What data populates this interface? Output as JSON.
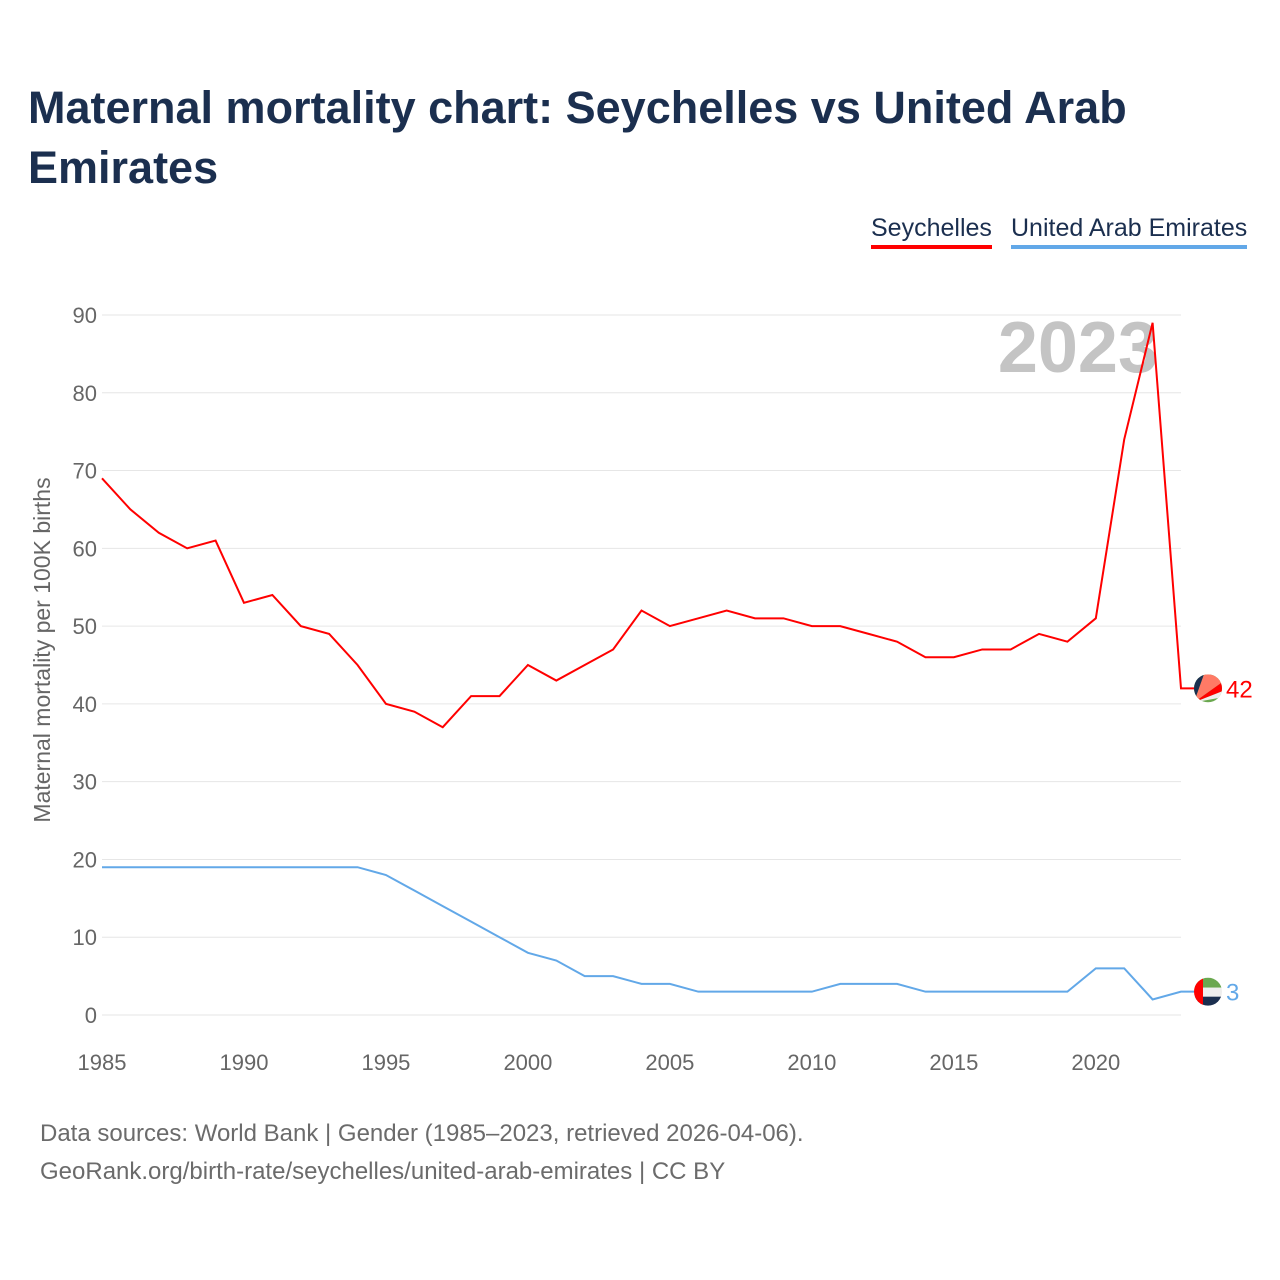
{
  "title": "Maternal mortality chart: Seychelles vs United Arab Emirates",
  "footer": {
    "line1": "Data sources: World Bank | Gender (1985–2023, retrieved 2026-04-06).",
    "line2": "GeoRank.org/birth-rate/seychelles/united-arab-emirates | CC BY"
  },
  "chart_data": {
    "type": "line",
    "title": "Maternal mortality chart: Seychelles vs United Arab Emirates",
    "xlabel": "",
    "ylabel": "Maternal mortality per 100K births",
    "xlim": [
      1985,
      2023
    ],
    "ylim": [
      0,
      90
    ],
    "yticks": [
      0,
      10,
      20,
      30,
      40,
      50,
      60,
      70,
      80,
      90
    ],
    "xticks": [
      1985,
      1990,
      1995,
      2000,
      2005,
      2010,
      2015,
      2020
    ],
    "grid": true,
    "legend_position": "top-right",
    "year_label": "2023",
    "x": [
      1985,
      1986,
      1987,
      1988,
      1989,
      1990,
      1991,
      1992,
      1993,
      1994,
      1995,
      1996,
      1997,
      1998,
      1999,
      2000,
      2001,
      2002,
      2003,
      2004,
      2005,
      2006,
      2007,
      2008,
      2009,
      2010,
      2011,
      2012,
      2013,
      2014,
      2015,
      2016,
      2017,
      2018,
      2019,
      2020,
      2021,
      2022,
      2023
    ],
    "series": [
      {
        "name": "Seychelles",
        "color": "#ff0000",
        "end_label": "42",
        "values": [
          69,
          65,
          62,
          60,
          61,
          53,
          54,
          50,
          49,
          45,
          40,
          39,
          37,
          41,
          41,
          45,
          43,
          45,
          47,
          52,
          50,
          51,
          52,
          51,
          51,
          50,
          50,
          49,
          48,
          46,
          46,
          47,
          47,
          49,
          48,
          51,
          74,
          89,
          42
        ]
      },
      {
        "name": "United Arab Emirates",
        "color": "#62a8e8",
        "end_label": "3",
        "values": [
          19,
          19,
          19,
          19,
          19,
          19,
          19,
          19,
          19,
          19,
          18,
          16,
          14,
          12,
          10,
          8,
          7,
          5,
          5,
          4,
          4,
          3,
          3,
          3,
          3,
          3,
          4,
          4,
          4,
          3,
          3,
          3,
          3,
          3,
          3,
          6,
          6,
          2,
          3
        ]
      }
    ]
  }
}
